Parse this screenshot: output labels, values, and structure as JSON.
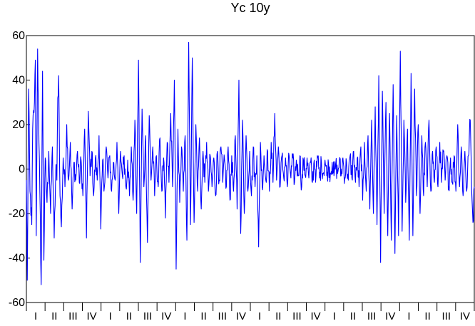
{
  "chart_data": {
    "type": "line",
    "title": "Yc 10y",
    "xlabel": "",
    "ylabel": "",
    "ylim": [
      -60,
      60
    ],
    "yticks": [
      -60,
      -40,
      -20,
      0,
      20,
      40,
      60
    ],
    "ytick_labels": [
      "-60",
      "-40",
      "-20",
      "0",
      "20",
      "40",
      "60"
    ],
    "xtick_labels": [
      "I",
      "II",
      "III",
      "IV",
      "I",
      "II",
      "III",
      "IV",
      "I",
      "II",
      "III",
      "IV",
      "I",
      "II",
      "III",
      "IV",
      "I",
      "II",
      "III",
      "IV",
      "I",
      "II",
      "III",
      "IV"
    ],
    "n_points": 1000,
    "grid": false,
    "legend": "none",
    "series": [
      {
        "color": "#0000ff",
        "anchors": [
          [
            0,
            -5
          ],
          [
            2,
            -50
          ],
          [
            5,
            36
          ],
          [
            8,
            -10
          ],
          [
            12,
            -25
          ],
          [
            14,
            18
          ],
          [
            18,
            30
          ],
          [
            20,
            49
          ],
          [
            22,
            -30
          ],
          [
            25,
            54
          ],
          [
            28,
            12
          ],
          [
            30,
            -10
          ],
          [
            33,
            -52
          ],
          [
            36,
            44
          ],
          [
            39,
            -41
          ],
          [
            42,
            5
          ],
          [
            46,
            -15
          ],
          [
            50,
            8
          ],
          [
            54,
            -20
          ],
          [
            58,
            10
          ],
          [
            62,
            -31
          ],
          [
            66,
            2
          ],
          [
            68,
            -5
          ],
          [
            70,
            32
          ],
          [
            72,
            42
          ],
          [
            75,
            -12
          ],
          [
            78,
            -26
          ],
          [
            82,
            5
          ],
          [
            86,
            -8
          ],
          [
            90,
            20
          ],
          [
            94,
            -5
          ],
          [
            98,
            12
          ],
          [
            102,
            -18
          ],
          [
            106,
            3
          ],
          [
            110,
            -5
          ],
          [
            114,
            8
          ],
          [
            118,
            -6
          ],
          [
            122,
            4
          ],
          [
            126,
            -12
          ],
          [
            130,
            18
          ],
          [
            134,
            -31
          ],
          [
            138,
            26
          ],
          [
            142,
            -3
          ],
          [
            146,
            8
          ],
          [
            150,
            -12
          ],
          [
            154,
            5
          ],
          [
            158,
            -5
          ],
          [
            162,
            15
          ],
          [
            166,
            -27
          ],
          [
            170,
            4
          ],
          [
            174,
            -8
          ],
          [
            178,
            10
          ],
          [
            182,
            -4
          ],
          [
            186,
            6
          ],
          [
            190,
            -10
          ],
          [
            194,
            3
          ],
          [
            198,
            -5
          ],
          [
            202,
            12
          ],
          [
            206,
            -20
          ],
          [
            210,
            8
          ],
          [
            214,
            -3
          ],
          [
            218,
            6
          ],
          [
            222,
            -8
          ],
          [
            226,
            4
          ],
          [
            230,
            -12
          ],
          [
            234,
            10
          ],
          [
            238,
            -14
          ],
          [
            242,
            22
          ],
          [
            246,
            -20
          ],
          [
            250,
            49
          ],
          [
            254,
            -42
          ],
          [
            258,
            27
          ],
          [
            262,
            -8
          ],
          [
            266,
            15
          ],
          [
            270,
            -33
          ],
          [
            274,
            24
          ],
          [
            278,
            -5
          ],
          [
            282,
            10
          ],
          [
            286,
            -12
          ],
          [
            290,
            6
          ],
          [
            294,
            -8
          ],
          [
            298,
            14
          ],
          [
            302,
            -10
          ],
          [
            306,
            5
          ],
          [
            310,
            -22
          ],
          [
            314,
            12
          ],
          [
            318,
            -6
          ],
          [
            322,
            25
          ],
          [
            326,
            -8
          ],
          [
            330,
            40
          ],
          [
            334,
            -45
          ],
          [
            338,
            18
          ],
          [
            342,
            -15
          ],
          [
            346,
            10
          ],
          [
            350,
            -10
          ],
          [
            354,
            15
          ],
          [
            358,
            -32
          ],
          [
            362,
            57
          ],
          [
            366,
            -25
          ],
          [
            370,
            50
          ],
          [
            374,
            -24
          ],
          [
            378,
            20
          ],
          [
            382,
            -10
          ],
          [
            386,
            14
          ],
          [
            390,
            -18
          ],
          [
            394,
            8
          ],
          [
            398,
            -6
          ],
          [
            402,
            12
          ],
          [
            406,
            -10
          ],
          [
            410,
            6
          ],
          [
            414,
            -8
          ],
          [
            418,
            5
          ],
          [
            422,
            -12
          ],
          [
            426,
            8
          ],
          [
            430,
            -5
          ],
          [
            434,
            10
          ],
          [
            438,
            -6
          ],
          [
            442,
            4
          ],
          [
            446,
            -8
          ],
          [
            450,
            10
          ],
          [
            454,
            -14
          ],
          [
            458,
            6
          ],
          [
            462,
            -10
          ],
          [
            466,
            15
          ],
          [
            470,
            -18
          ],
          [
            474,
            40
          ],
          [
            478,
            -29
          ],
          [
            482,
            22
          ],
          [
            486,
            -20
          ],
          [
            490,
            15
          ],
          [
            494,
            -10
          ],
          [
            498,
            8
          ],
          [
            502,
            -12
          ],
          [
            506,
            10
          ],
          [
            510,
            -8
          ],
          [
            514,
            6
          ],
          [
            518,
            -35
          ],
          [
            522,
            12
          ],
          [
            526,
            -8
          ],
          [
            530,
            6
          ],
          [
            534,
            -5
          ],
          [
            538,
            8
          ],
          [
            542,
            -10
          ],
          [
            546,
            12
          ],
          [
            550,
            -6
          ],
          [
            554,
            25
          ],
          [
            558,
            -5
          ],
          [
            562,
            10
          ],
          [
            566,
            -8
          ],
          [
            570,
            6
          ],
          [
            574,
            -4
          ],
          [
            578,
            5
          ],
          [
            582,
            -8
          ],
          [
            586,
            6
          ],
          [
            590,
            -4
          ],
          [
            594,
            5
          ],
          [
            598,
            -6
          ],
          [
            602,
            4
          ],
          [
            606,
            -3
          ],
          [
            610,
            6
          ],
          [
            614,
            -8
          ],
          [
            618,
            4
          ],
          [
            622,
            -3
          ],
          [
            626,
            5
          ],
          [
            630,
            -4
          ],
          [
            634,
            3
          ],
          [
            638,
            -6
          ],
          [
            642,
            4
          ],
          [
            646,
            -3
          ],
          [
            650,
            5
          ],
          [
            654,
            -4
          ],
          [
            658,
            3
          ],
          [
            662,
            -2
          ],
          [
            666,
            4
          ],
          [
            670,
            -3
          ],
          [
            674,
            2
          ],
          [
            678,
            -2
          ],
          [
            682,
            3
          ],
          [
            686,
            -3
          ],
          [
            690,
            2
          ],
          [
            694,
            -2
          ],
          [
            698,
            4
          ],
          [
            702,
            -3
          ],
          [
            706,
            5
          ],
          [
            710,
            -4
          ],
          [
            714,
            3
          ],
          [
            718,
            -5
          ],
          [
            722,
            6
          ],
          [
            726,
            -4
          ],
          [
            730,
            8
          ],
          [
            734,
            -6
          ],
          [
            738,
            5
          ],
          [
            742,
            -8
          ],
          [
            746,
            10
          ],
          [
            750,
            -14
          ],
          [
            754,
            12
          ],
          [
            758,
            -10
          ],
          [
            762,
            15
          ],
          [
            766,
            -18
          ],
          [
            770,
            22
          ],
          [
            774,
            -20
          ],
          [
            778,
            28
          ],
          [
            782,
            -25
          ],
          [
            786,
            42
          ],
          [
            790,
            -42
          ],
          [
            794,
            35
          ],
          [
            798,
            -20
          ],
          [
            802,
            30
          ],
          [
            806,
            -30
          ],
          [
            810,
            25
          ],
          [
            814,
            -32
          ],
          [
            818,
            38
          ],
          [
            822,
            -38
          ],
          [
            826,
            24
          ],
          [
            830,
            -30
          ],
          [
            834,
            53
          ],
          [
            838,
            -28
          ],
          [
            842,
            22
          ],
          [
            846,
            -15
          ],
          [
            850,
            18
          ],
          [
            854,
            -32
          ],
          [
            858,
            43
          ],
          [
            862,
            -30
          ],
          [
            866,
            36
          ],
          [
            870,
            -12
          ],
          [
            874,
            20
          ],
          [
            878,
            -20
          ],
          [
            882,
            15
          ],
          [
            886,
            -12
          ],
          [
            890,
            12
          ],
          [
            894,
            -8
          ],
          [
            898,
            22
          ],
          [
            902,
            -10
          ],
          [
            906,
            8
          ],
          [
            910,
            -6
          ],
          [
            914,
            10
          ],
          [
            918,
            -8
          ],
          [
            922,
            12
          ],
          [
            926,
            -6
          ],
          [
            930,
            8
          ],
          [
            934,
            -5
          ],
          [
            938,
            6
          ],
          [
            942,
            -8
          ],
          [
            946,
            5
          ],
          [
            950,
            -6
          ],
          [
            954,
            6
          ],
          [
            958,
            -10
          ],
          [
            962,
            20
          ],
          [
            966,
            -8
          ],
          [
            970,
            10
          ],
          [
            974,
            -12
          ],
          [
            978,
            8
          ],
          [
            982,
            -10
          ],
          [
            986,
            6
          ],
          [
            990,
            22
          ],
          [
            994,
            -14
          ],
          [
            996,
            -24
          ],
          [
            999,
            -8
          ]
        ]
      }
    ]
  }
}
